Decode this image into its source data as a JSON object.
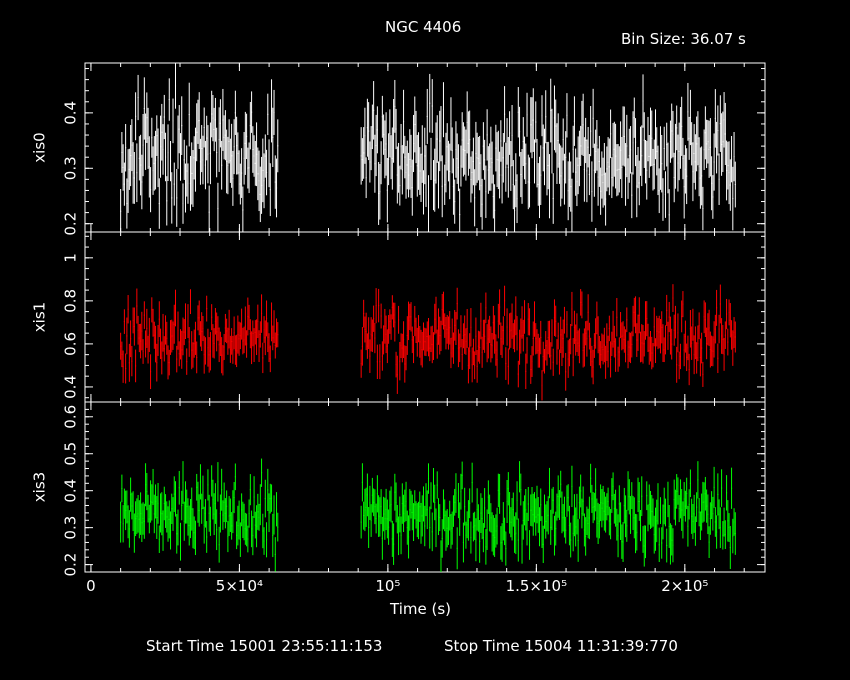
{
  "title": "NGC 4406",
  "bin_size_label": "Bin Size: 36.07 s",
  "xlabel": "Time (s)",
  "start_time_label": "Start Time 15001 23:55:11:153",
  "stop_time_label": "Stop Time 15004 11:31:39:770",
  "colors": {
    "background": "#000000",
    "frame": "#ffffff",
    "xis0": "#ffffff",
    "xis1": "#ff0000",
    "xis3": "#00ff00"
  },
  "chart_data": {
    "type": "scatter",
    "title": "NGC 4406",
    "xlabel": "Time (s)",
    "xlim": [
      -2000,
      227000
    ],
    "x_ticks": [
      {
        "value": 0,
        "label": "0"
      },
      {
        "value": 50000,
        "label": "5×10⁴"
      },
      {
        "value": 100000,
        "label": "10⁵"
      },
      {
        "value": 150000,
        "label": "1.5×10⁵"
      },
      {
        "value": 200000,
        "label": "2×10⁵"
      }
    ],
    "x_minor_step": 10000,
    "segments": [
      [
        10000,
        63000
      ],
      [
        91000,
        217000
      ]
    ],
    "error_bars": true,
    "panels": [
      {
        "name": "xis0",
        "ylabel": "xis0",
        "ylim": [
          0.185,
          0.49
        ],
        "y_ticks": [
          0.2,
          0.3,
          0.4
        ],
        "y_tick_labels": [
          "0.2",
          "0.3",
          "0.4"
        ],
        "y_minor_step": 0.02,
        "color": "#ffffff",
        "mean": 0.32,
        "scatter": 0.045,
        "error": 0.045
      },
      {
        "name": "xis1",
        "ylabel": "xis1",
        "ylim": [
          0.33,
          1.12
        ],
        "y_ticks": [
          0.4,
          0.6,
          0.8,
          1.0
        ],
        "y_tick_labels": [
          "0.4",
          "0.6",
          "0.8",
          "1"
        ],
        "y_minor_step": 0.05,
        "color": "#ff0000",
        "mean": 0.635,
        "scatter": 0.075,
        "error": 0.07
      },
      {
        "name": "xis3",
        "ylabel": "xis3",
        "ylim": [
          0.18,
          0.64
        ],
        "y_ticks": [
          0.2,
          0.3,
          0.4,
          0.5,
          0.6
        ],
        "y_tick_labels": [
          "0.2",
          "0.3",
          "0.4",
          "0.5",
          "0.6"
        ],
        "y_minor_step": 0.02,
        "color": "#00ff00",
        "mean": 0.335,
        "scatter": 0.045,
        "error": 0.045
      }
    ]
  }
}
